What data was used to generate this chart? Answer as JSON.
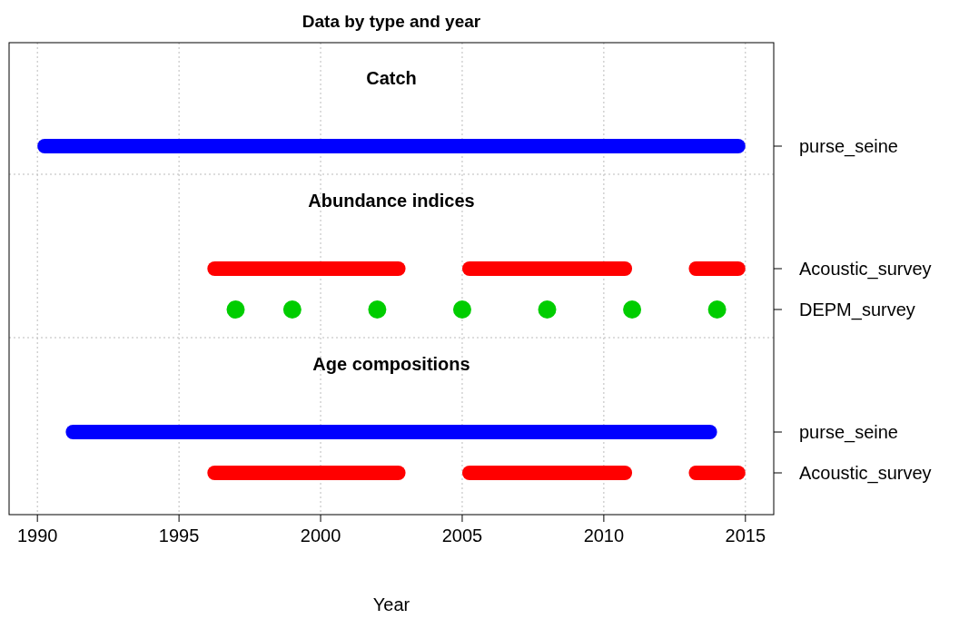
{
  "chart_data": {
    "type": "bar",
    "orientation": "horizontal",
    "title": "Data by type and year",
    "xlabel": "Year",
    "categories": [
      "purse_seine",
      "Acoustic_survey",
      "DEPM_survey",
      "purse_seine",
      "Acoustic_survey"
    ],
    "annotations": [
      "Catch",
      "Abundance indices",
      "Age compositions"
    ],
    "series": [
      {
        "colors": [
          "#0000ff",
          "#ff0000",
          null,
          "#0000ff",
          "#ff0000"
        ],
        "values": [
          25,
          7,
          null,
          23,
          7
        ],
        "base": [
          1990,
          1996,
          null,
          1991,
          1996
        ]
      },
      {
        "colors": [
          null,
          "#ff0000",
          null,
          null,
          "#ff0000"
        ],
        "values": [
          null,
          6,
          null,
          null,
          6
        ],
        "base": [
          null,
          2005,
          null,
          null,
          2005
        ]
      },
      {
        "colors": [
          null,
          "#ff0000",
          null,
          null,
          "#ff0000"
        ],
        "values": [
          null,
          2,
          null,
          null,
          2
        ],
        "base": [
          null,
          2013,
          null,
          null,
          2013
        ]
      },
      {
        "type": "scatter",
        "color": "#00cd00",
        "marker": "circle",
        "x": [
          "DEPM_survey",
          "DEPM_survey",
          "DEPM_survey",
          "DEPM_survey",
          "DEPM_survey",
          "DEPM_survey",
          "DEPM_survey"
        ],
        "values": [
          1997,
          1999,
          2002,
          2005,
          2008,
          2011,
          2014
        ]
      }
    ],
    "xlim": [
      1989,
      2016
    ],
    "xticks": [
      1990,
      1995,
      2000,
      2005,
      2010,
      2015
    ],
    "grid": "x"
  }
}
